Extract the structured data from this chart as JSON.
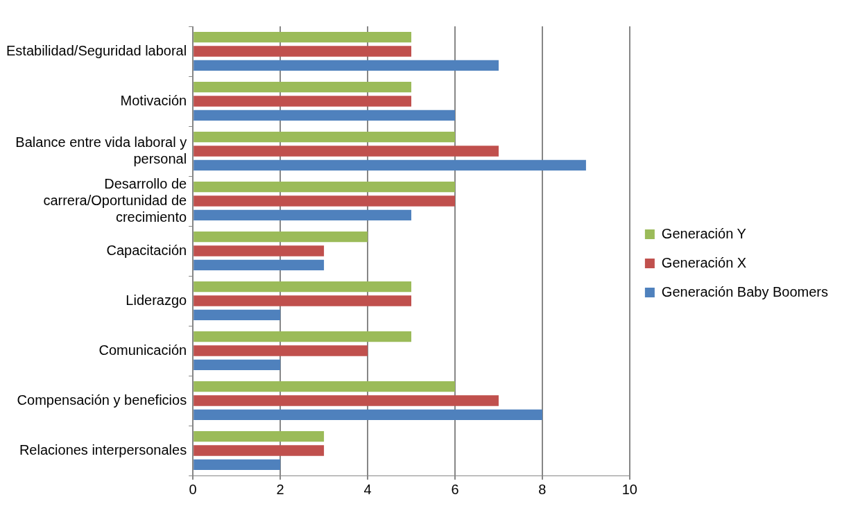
{
  "chart_data": {
    "type": "bar",
    "orientation": "horizontal",
    "categories": [
      "Estabilidad/Seguridad laboral",
      "Motivación",
      "Balance entre vida laboral y personal",
      "Desarrollo de carrera/Oportunidad de crecimiento",
      "Capacitación",
      "Liderazgo",
      "Comunicación",
      "Compensación y beneficios",
      "Relaciones interpersonales"
    ],
    "series": [
      {
        "name": "Generación Y",
        "color": "#9bbb59",
        "values": [
          5,
          5,
          6,
          6,
          4,
          5,
          5,
          6,
          3
        ]
      },
      {
        "name": "Generación X",
        "color": "#c0504d",
        "values": [
          5,
          5,
          7,
          6,
          3,
          5,
          4,
          7,
          3
        ]
      },
      {
        "name": "Generación Baby Boomers",
        "color": "#4f81bd",
        "values": [
          7,
          6,
          9,
          5,
          3,
          2,
          2,
          8,
          2
        ]
      }
    ],
    "xlim": [
      0,
      10
    ],
    "xticks": [
      0,
      2,
      4,
      6,
      8,
      10
    ],
    "grid": "x",
    "legend": "right"
  }
}
